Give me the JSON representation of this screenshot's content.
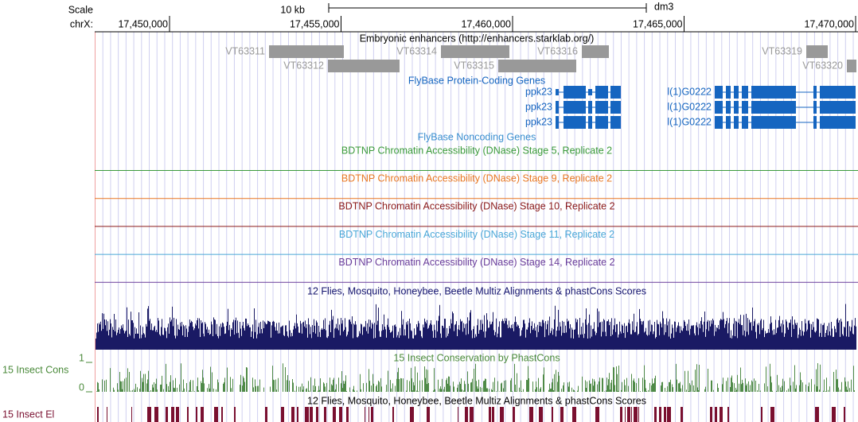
{
  "ruler": {
    "scale_label": "Scale",
    "chr_label": "chrX:",
    "scale_bar": "10 kb",
    "assembly": "dm3",
    "positions": [
      "17,450,000",
      "17,455,000",
      "17,460,000",
      "17,465,000",
      "17,470,000"
    ]
  },
  "enhancers": {
    "title": "Embryonic enhancers (http://enhancers.starklab.org/)",
    "items": [
      "VT63311",
      "VT63312",
      "VT63314",
      "VT63315",
      "VT63316",
      "VT63319",
      "VT63320"
    ]
  },
  "coding_genes": {
    "title": "FlyBase Protein-Coding Genes",
    "labels": [
      "ppk23",
      "ppk23",
      "ppk23",
      "l(1)G0222",
      "l(1)G0222",
      "l(1)G0222"
    ]
  },
  "noncoding_genes": {
    "title": "FlyBase Noncoding Genes"
  },
  "dnase_tracks": [
    "BDTNP Chromatin Accessibility (DNase) Stage 5, Replicate 2",
    "BDTNP Chromatin Accessibility (DNase) Stage 9, Replicate 2",
    "BDTNP Chromatin Accessibility (DNase) Stage 10, Replicate 2",
    "BDTNP Chromatin Accessibility (DNase) Stage 11, Replicate 2",
    "BDTNP Chromatin Accessibility (DNase) Stage 14, Replicate 2"
  ],
  "multiz": {
    "title": "12 Flies, Mosquito, Honeybee, Beetle Multiz Alignments & phastCons Scores"
  },
  "conservation": {
    "title": "15 Insect Conservation by PhastCons",
    "side_label": "15 Insect Cons",
    "max_label": "1",
    "min_label": "0"
  },
  "elements": {
    "title": "12 Flies, Mosquito, Honeybee, Beetle Multiz Alignments & phastCons Scores",
    "side_label": "15 Insect El"
  }
}
